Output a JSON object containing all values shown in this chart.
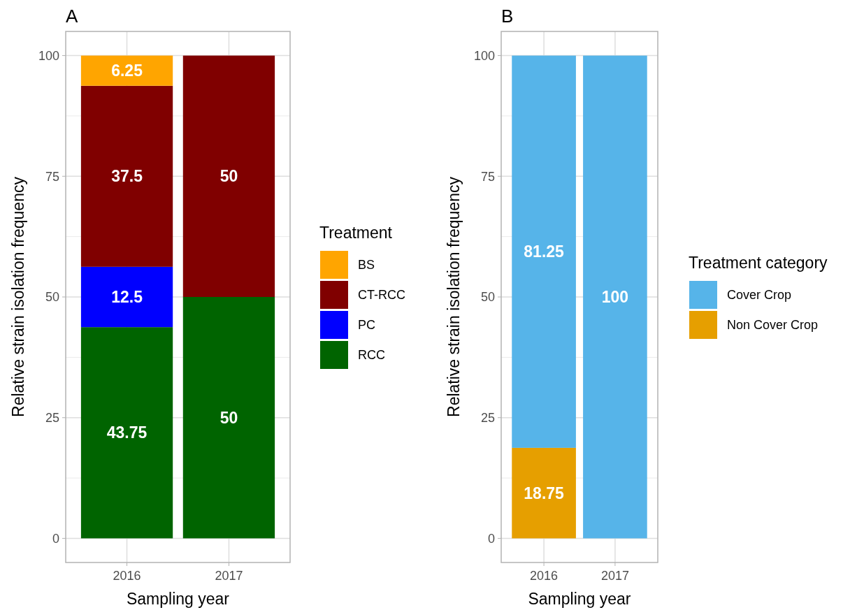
{
  "chart_data": [
    {
      "type": "bar",
      "title": "A",
      "xlabel": "Sampling year",
      "ylabel": "Relative strain isolation frequency",
      "legend_title": "Treatment",
      "categories": [
        "2016",
        "2017"
      ],
      "stacked": true,
      "ylim": [
        -5,
        105
      ],
      "yticks": [
        0,
        25,
        50,
        75,
        100
      ],
      "grid": true,
      "legend": "right",
      "data_labels": true,
      "series": [
        {
          "name": "RCC",
          "color": "#006400",
          "values": [
            43.75,
            50
          ]
        },
        {
          "name": "PC",
          "color": "#0000ff",
          "values": [
            12.5,
            null
          ]
        },
        {
          "name": "CT-RCC",
          "color": "#800000",
          "values": [
            37.5,
            50
          ]
        },
        {
          "name": "BS",
          "color": "#ffa500",
          "values": [
            6.25,
            null
          ]
        }
      ]
    },
    {
      "type": "bar",
      "title": "B",
      "xlabel": "Sampling year",
      "ylabel": "Relative strain isolation frequency",
      "legend_title": "Treatment category",
      "categories": [
        "2016",
        "2017"
      ],
      "stacked": true,
      "ylim": [
        -5,
        105
      ],
      "yticks": [
        0,
        25,
        50,
        75,
        100
      ],
      "grid": true,
      "legend": "right",
      "data_labels": true,
      "series": [
        {
          "name": "Non Cover Crop",
          "color": "#e69f00",
          "values": [
            18.75,
            null
          ]
        },
        {
          "name": "Cover Crop",
          "color": "#56b4e9",
          "values": [
            81.25,
            100
          ]
        }
      ]
    }
  ]
}
